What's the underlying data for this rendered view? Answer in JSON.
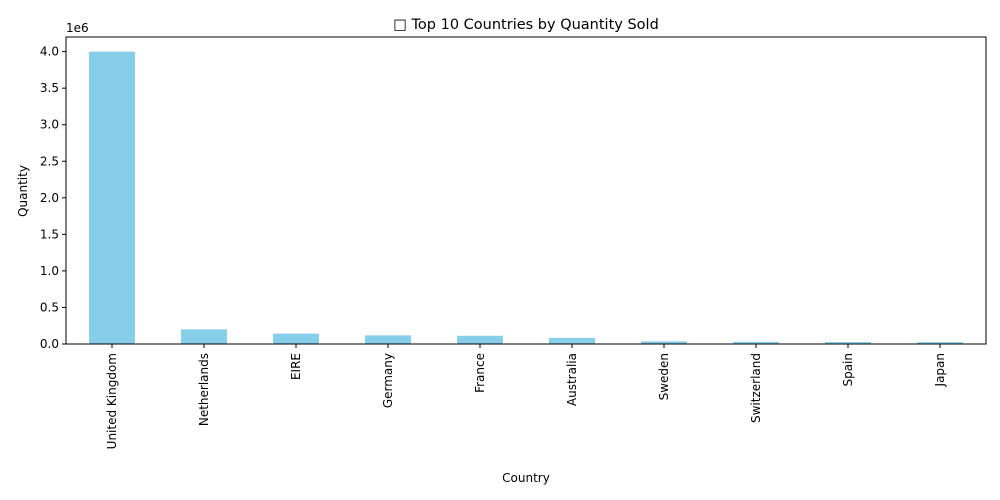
{
  "chart_data": {
    "type": "bar",
    "title": "□ Top 10 Countries by Quantity Sold",
    "xlabel": "Country",
    "ylabel": "Quantity",
    "y_offset_text": "1e6",
    "y_scale": 1000000,
    "ylim": [
      0,
      4200000
    ],
    "yticks": [
      0,
      500000,
      1000000,
      1500000,
      2000000,
      2500000,
      3000000,
      3500000,
      4000000
    ],
    "ytick_labels": [
      "0.0",
      "0.5",
      "1.0",
      "1.5",
      "2.0",
      "2.5",
      "3.0",
      "3.5",
      "4.0"
    ],
    "categories": [
      "United Kingdom",
      "Netherlands",
      "EIRE",
      "Germany",
      "France",
      "Australia",
      "Sweden",
      "Switzerland",
      "Spain",
      "Japan"
    ],
    "values": [
      4000000,
      200000,
      142000,
      118000,
      112000,
      84000,
      36000,
      30000,
      27000,
      26000
    ],
    "bar_color": "#87ceeb",
    "grid": false,
    "legend": "none"
  }
}
